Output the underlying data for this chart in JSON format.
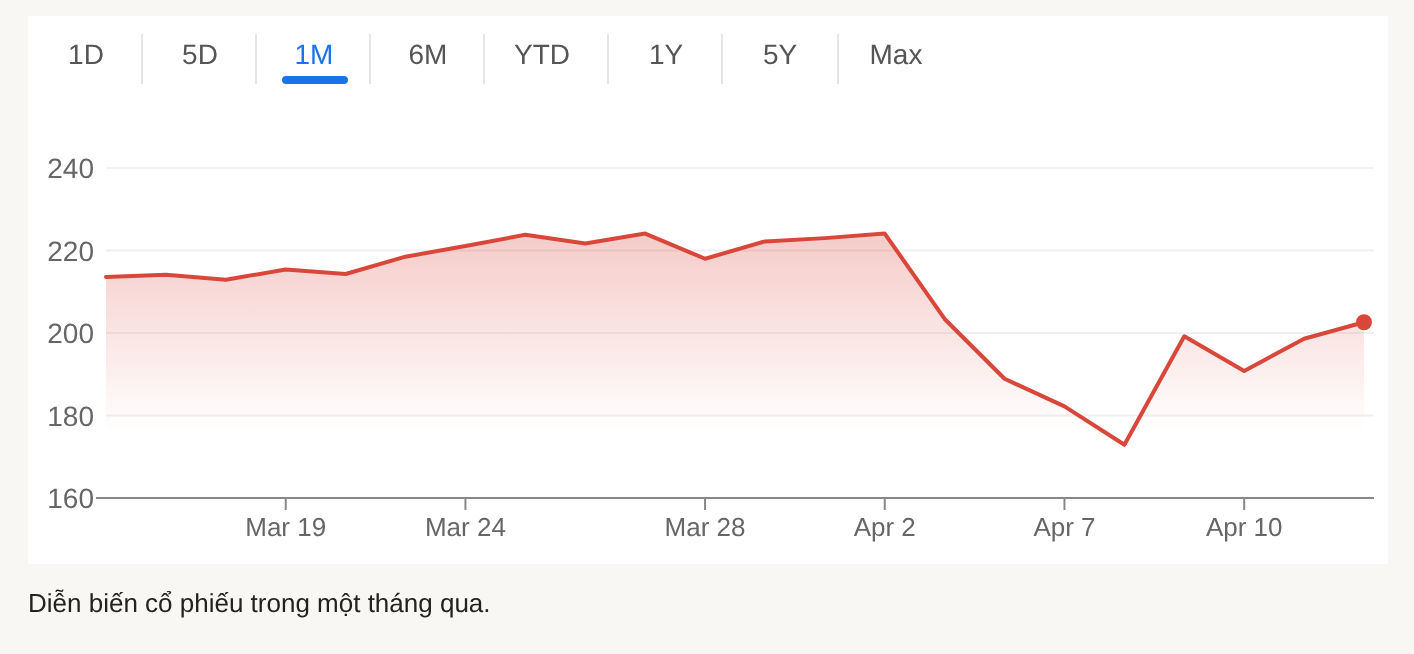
{
  "chart_data": {
    "type": "area",
    "categories": [
      null,
      null,
      null,
      "Mar 19",
      null,
      null,
      "Mar 24",
      null,
      null,
      null,
      "Mar 28",
      null,
      null,
      "Apr 2",
      null,
      null,
      "Apr 7",
      null,
      null,
      "Apr 10",
      null,
      null
    ],
    "series": [
      {
        "color": "#d9473b",
        "values": [
          213.6,
          214.1,
          212.9,
          215.4,
          214.3,
          218.5,
          221.1,
          223.8,
          221.7,
          224.1,
          218.0,
          222.2,
          223.0,
          224.1,
          203.4,
          188.9,
          182.2,
          172.9,
          199.2,
          190.8,
          198.6,
          202.6
        ]
      }
    ],
    "ylim": [
      160,
      240
    ],
    "yticks": [
      160,
      180,
      200,
      220,
      240
    ],
    "grid": "y",
    "marker": "none",
    "line_style": "solid",
    "annotations": [
      "1D",
      "5D",
      "1M",
      "6M",
      "YTD",
      "1Y",
      "5Y",
      "Max",
      "Diễn biến cổ phiếu trong một tháng qua."
    ]
  }
}
